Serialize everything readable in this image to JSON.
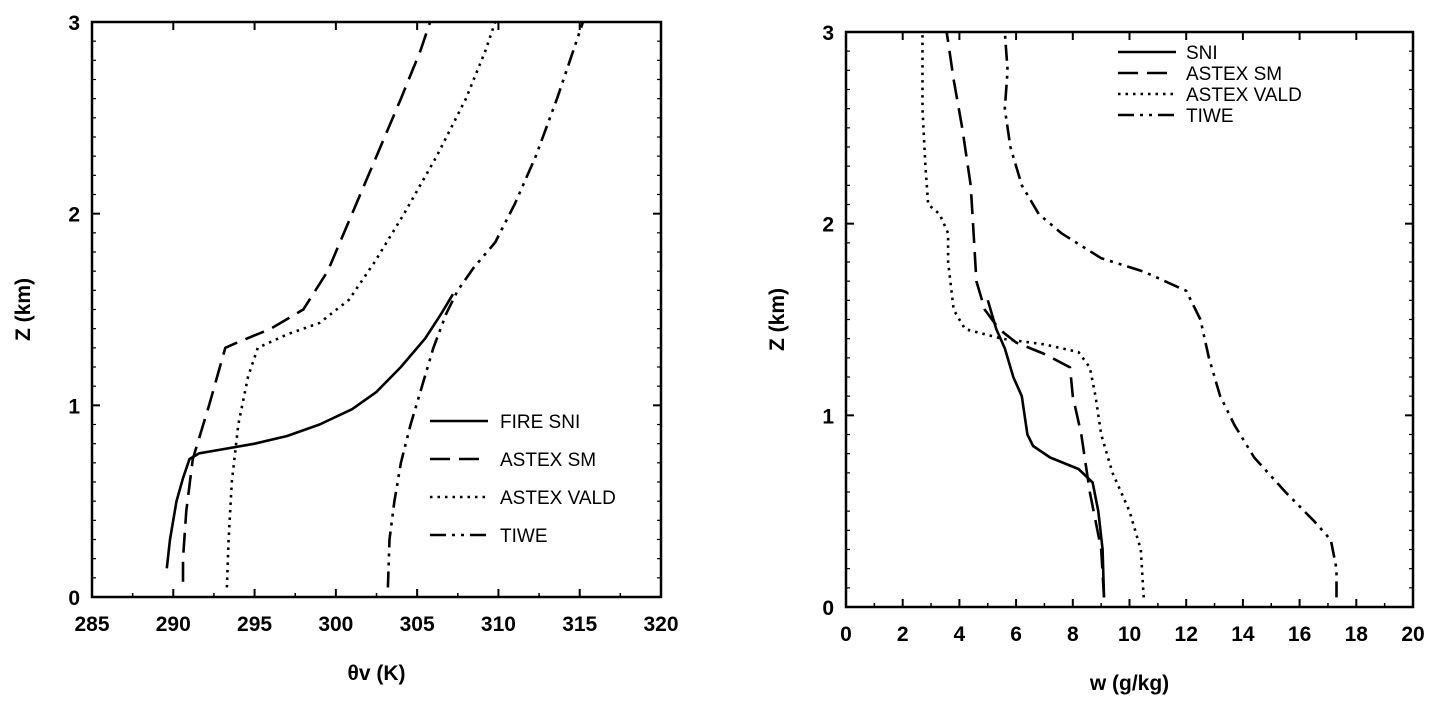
{
  "chart_data": [
    {
      "type": "line",
      "xlabel": "θv (K)",
      "ylabel": "Z (km)",
      "xlim": [
        285,
        320
      ],
      "ylim": [
        0,
        3
      ],
      "x_ticks": [
        "285",
        "290",
        "295",
        "300",
        "305",
        "310",
        "315",
        "320"
      ],
      "y_ticks": [
        "0",
        "1",
        "2",
        "3"
      ],
      "legend_position": "lower-right",
      "series": [
        {
          "name": "FIRE SNI",
          "style": "solid",
          "points": [
            [
              289.6,
              0.15
            ],
            [
              289.8,
              0.3
            ],
            [
              290.2,
              0.5
            ],
            [
              290.6,
              0.62
            ],
            [
              291.0,
              0.72
            ],
            [
              291.6,
              0.75
            ],
            [
              293.0,
              0.77
            ],
            [
              295.0,
              0.8
            ],
            [
              297.0,
              0.84
            ],
            [
              299.0,
              0.9
            ],
            [
              301.0,
              0.98
            ],
            [
              302.5,
              1.07
            ],
            [
              304.0,
              1.2
            ],
            [
              305.5,
              1.35
            ],
            [
              306.5,
              1.48
            ],
            [
              307.2,
              1.58
            ]
          ]
        },
        {
          "name": "ASTEX SM",
          "style": "dashed",
          "points": [
            [
              290.6,
              0.08
            ],
            [
              290.6,
              0.2
            ],
            [
              290.8,
              0.45
            ],
            [
              291.2,
              0.72
            ],
            [
              292.2,
              1.0
            ],
            [
              293.2,
              1.3
            ],
            [
              294.0,
              1.33
            ],
            [
              296.0,
              1.4
            ],
            [
              298.0,
              1.5
            ],
            [
              299.5,
              1.7
            ],
            [
              301.0,
              2.0
            ],
            [
              302.5,
              2.3
            ],
            [
              304.0,
              2.6
            ],
            [
              305.2,
              2.85
            ],
            [
              305.8,
              3.0
            ]
          ]
        },
        {
          "name": "ASTEX VALD",
          "style": "dotted",
          "points": [
            [
              293.3,
              0.05
            ],
            [
              293.4,
              0.3
            ],
            [
              293.6,
              0.6
            ],
            [
              294.0,
              0.9
            ],
            [
              294.6,
              1.15
            ],
            [
              295.2,
              1.3
            ],
            [
              297.0,
              1.37
            ],
            [
              299.0,
              1.43
            ],
            [
              300.8,
              1.55
            ],
            [
              302.4,
              1.75
            ],
            [
              304.2,
              2.0
            ],
            [
              306.2,
              2.3
            ],
            [
              308.0,
              2.6
            ],
            [
              309.2,
              2.85
            ],
            [
              309.8,
              3.0
            ]
          ]
        },
        {
          "name": "TIWE",
          "style": "dashdot",
          "points": [
            [
              303.2,
              0.05
            ],
            [
              303.3,
              0.3
            ],
            [
              303.6,
              0.5
            ],
            [
              304.0,
              0.7
            ],
            [
              304.6,
              0.9
            ],
            [
              305.3,
              1.1
            ],
            [
              306.0,
              1.3
            ],
            [
              306.8,
              1.48
            ],
            [
              307.5,
              1.6
            ],
            [
              308.5,
              1.72
            ],
            [
              309.8,
              1.85
            ],
            [
              311.0,
              2.05
            ],
            [
              312.3,
              2.3
            ],
            [
              313.6,
              2.6
            ],
            [
              314.8,
              2.9
            ],
            [
              315.2,
              3.0
            ]
          ]
        }
      ]
    },
    {
      "type": "line",
      "xlabel": "w (g/kg)",
      "ylabel": "Z (km)",
      "xlim": [
        0,
        20
      ],
      "ylim": [
        0,
        3
      ],
      "x_ticks": [
        "0",
        "2",
        "4",
        "6",
        "8",
        "10",
        "12",
        "14",
        "16",
        "18",
        "20"
      ],
      "y_ticks": [
        "0",
        "1",
        "2",
        "3"
      ],
      "legend_position": "top-left",
      "series": [
        {
          "name": "SNI",
          "style": "solid",
          "points": [
            [
              9.1,
              0.05
            ],
            [
              9.05,
              0.3
            ],
            [
              8.9,
              0.5
            ],
            [
              8.7,
              0.65
            ],
            [
              8.2,
              0.72
            ],
            [
              7.2,
              0.78
            ],
            [
              6.6,
              0.84
            ],
            [
              6.4,
              0.9
            ],
            [
              6.3,
              1.0
            ],
            [
              6.2,
              1.1
            ],
            [
              5.9,
              1.2
            ],
            [
              5.6,
              1.35
            ],
            [
              5.3,
              1.45
            ],
            [
              5.0,
              1.6
            ]
          ]
        },
        {
          "name": "ASTEX SM",
          "style": "dashed",
          "points": [
            [
              9.1,
              0.05
            ],
            [
              9.0,
              0.3
            ],
            [
              8.6,
              0.6
            ],
            [
              8.3,
              0.9
            ],
            [
              8.0,
              1.1
            ],
            [
              7.9,
              1.25
            ],
            [
              7.0,
              1.32
            ],
            [
              6.0,
              1.38
            ],
            [
              5.4,
              1.45
            ],
            [
              4.9,
              1.55
            ],
            [
              4.6,
              1.7
            ],
            [
              4.5,
              1.95
            ],
            [
              4.4,
              2.2
            ],
            [
              4.1,
              2.5
            ],
            [
              3.8,
              2.75
            ],
            [
              3.6,
              2.95
            ],
            [
              3.55,
              3.0
            ]
          ]
        },
        {
          "name": "ASTEX VALD",
          "style": "dotted",
          "points": [
            [
              10.5,
              0.05
            ],
            [
              10.4,
              0.3
            ],
            [
              10.0,
              0.5
            ],
            [
              9.4,
              0.7
            ],
            [
              9.0,
              0.9
            ],
            [
              8.8,
              1.1
            ],
            [
              8.6,
              1.25
            ],
            [
              8.2,
              1.33
            ],
            [
              7.0,
              1.37
            ],
            [
              5.5,
              1.4
            ],
            [
              4.2,
              1.45
            ],
            [
              3.8,
              1.55
            ],
            [
              3.6,
              1.8
            ],
            [
              3.6,
              1.95
            ],
            [
              3.3,
              2.05
            ],
            [
              2.9,
              2.1
            ],
            [
              2.8,
              2.3
            ],
            [
              2.7,
              2.6
            ],
            [
              2.7,
              3.0
            ]
          ]
        },
        {
          "name": "TIWE",
          "style": "dashdot",
          "points": [
            [
              17.3,
              0.05
            ],
            [
              17.3,
              0.2
            ],
            [
              17.1,
              0.35
            ],
            [
              16.5,
              0.45
            ],
            [
              15.5,
              0.6
            ],
            [
              14.4,
              0.78
            ],
            [
              13.7,
              0.95
            ],
            [
              13.2,
              1.1
            ],
            [
              12.8,
              1.3
            ],
            [
              12.5,
              1.5
            ],
            [
              12.0,
              1.65
            ],
            [
              10.5,
              1.75
            ],
            [
              9.0,
              1.82
            ],
            [
              7.6,
              1.95
            ],
            [
              6.8,
              2.05
            ],
            [
              6.2,
              2.2
            ],
            [
              5.8,
              2.4
            ],
            [
              5.6,
              2.6
            ],
            [
              5.7,
              2.8
            ],
            [
              5.6,
              3.0
            ]
          ]
        }
      ]
    }
  ]
}
